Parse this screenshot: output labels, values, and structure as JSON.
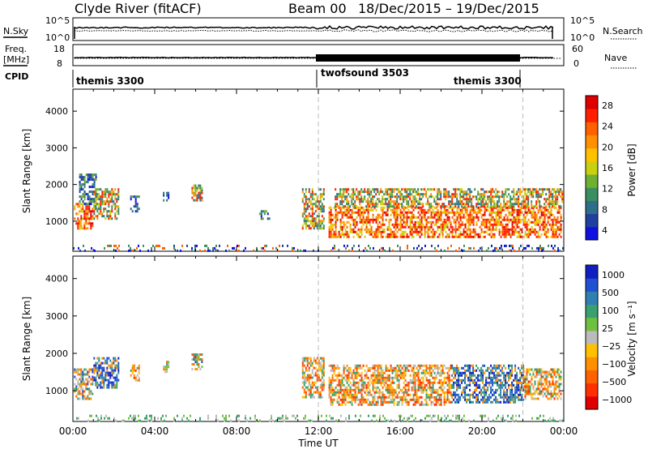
{
  "header": {
    "title": "Clyde River (fitACF)",
    "beam": "Beam 00",
    "dates": "18/Dec/2015 – 19/Dec/2015"
  },
  "top_panels": {
    "nsky_label": "N.Sky",
    "nsearch_label": "N.Search",
    "freq_label_line1": "Freq.",
    "freq_label_line2": "[MHz]",
    "nave_label": "Nave",
    "cpid_label": "CPID",
    "sky_ticks": [
      "10^5",
      "10^0"
    ],
    "search_ticks": [
      "10^5",
      "10^0"
    ],
    "freq_ticks": [
      "18",
      "8"
    ],
    "nave_ticks": [
      "60",
      "0"
    ],
    "cpid_segments": [
      "themis 3300",
      "twofsound 3503",
      "themis 3300"
    ]
  },
  "chart_data": [
    {
      "type": "heatmap",
      "name": "power",
      "ylabel": "Slant Range [km]",
      "yticks": [
        1000,
        2000,
        3000,
        4000
      ],
      "ylim": [
        180,
        4600
      ],
      "x_ticks": [
        "00:00",
        "04:00",
        "08:00",
        "12:00",
        "16:00",
        "20:00",
        "00:00"
      ],
      "xlim_hours": [
        0,
        24
      ],
      "colorbar": {
        "label": "Power [dB]",
        "ticks": [
          "4",
          "8",
          "12",
          "16",
          "20",
          "24",
          "28"
        ],
        "colors": [
          "#1010e0",
          "#2040a0",
          "#2f6e8a",
          "#3a8f60",
          "#70b030",
          "#c8d010",
          "#ffc000",
          "#ff9000",
          "#ff6000",
          "#ff2000",
          "#e00000"
        ]
      },
      "mode_change_lines_hours": [
        12,
        22
      ],
      "regions": [
        {
          "t": [
            0.05,
            1.0
          ],
          "r": [
            800,
            1500
          ],
          "level": "high"
        },
        {
          "t": [
            0.3,
            1.1
          ],
          "r": [
            1500,
            2300
          ],
          "level": "low"
        },
        {
          "t": [
            1.0,
            2.2
          ],
          "r": [
            1100,
            1900
          ],
          "level": "mid"
        },
        {
          "t": [
            2.8,
            3.2
          ],
          "r": [
            1300,
            1700
          ],
          "level": "low"
        },
        {
          "t": [
            4.4,
            4.7
          ],
          "r": [
            1500,
            1800
          ],
          "level": "low"
        },
        {
          "t": [
            5.8,
            6.3
          ],
          "r": [
            1600,
            2000
          ],
          "level": "mid"
        },
        {
          "t": [
            9.1,
            9.6
          ],
          "r": [
            1100,
            1300
          ],
          "level": "low"
        },
        {
          "t": [
            11.2,
            12.3
          ],
          "r": [
            800,
            1900
          ],
          "level": "mid"
        },
        {
          "t": [
            12.5,
            23.9
          ],
          "r": [
            600,
            1400
          ],
          "level": "high"
        },
        {
          "t": [
            12.8,
            23.9
          ],
          "r": [
            1400,
            1900
          ],
          "level": "mid"
        },
        {
          "t": [
            0,
            24
          ],
          "r": [
            200,
            360
          ],
          "level": "scatter"
        }
      ]
    },
    {
      "type": "heatmap",
      "name": "velocity",
      "ylabel": "Slant Range [km]",
      "xlabel": "Time UT",
      "yticks": [
        1000,
        2000,
        3000,
        4000
      ],
      "ylim": [
        180,
        4600
      ],
      "x_ticks": [
        "00:00",
        "04:00",
        "08:00",
        "12:00",
        "16:00",
        "20:00",
        "00:00"
      ],
      "xlim_hours": [
        0,
        24
      ],
      "colorbar": {
        "label": "Velocity [m s⁻¹]",
        "ticks": [
          "1000",
          "500",
          "100",
          "25",
          "−25",
          "−100",
          "−500",
          "−1000"
        ],
        "colors": [
          "#1020c0",
          "#2050d0",
          "#2f7fb0",
          "#3aa070",
          "#70c040",
          "#bbbbbb",
          "#ffc000",
          "#ff9000",
          "#ff6000",
          "#ff3000",
          "#e00000"
        ]
      },
      "mode_change_lines_hours": [
        12,
        22
      ],
      "regions": [
        {
          "t": [
            0.05,
            1.0
          ],
          "r": [
            800,
            1600
          ],
          "level": "mixed"
        },
        {
          "t": [
            1.0,
            2.2
          ],
          "r": [
            1100,
            1900
          ],
          "level": "toward"
        },
        {
          "t": [
            2.8,
            3.2
          ],
          "r": [
            1300,
            1700
          ],
          "level": "away"
        },
        {
          "t": [
            4.4,
            4.7
          ],
          "r": [
            1500,
            1800
          ],
          "level": "mixed"
        },
        {
          "t": [
            5.8,
            6.3
          ],
          "r": [
            1600,
            2000
          ],
          "level": "mixed"
        },
        {
          "t": [
            11.2,
            12.3
          ],
          "r": [
            800,
            1900
          ],
          "level": "away"
        },
        {
          "t": [
            12.5,
            18.5
          ],
          "r": [
            600,
            1700
          ],
          "level": "away"
        },
        {
          "t": [
            18.5,
            22.0
          ],
          "r": [
            700,
            1700
          ],
          "level": "toward"
        },
        {
          "t": [
            22.0,
            23.9
          ],
          "r": [
            800,
            1600
          ],
          "level": "away"
        },
        {
          "t": [
            0,
            24
          ],
          "r": [
            200,
            360
          ],
          "level": "ground"
        }
      ]
    }
  ]
}
